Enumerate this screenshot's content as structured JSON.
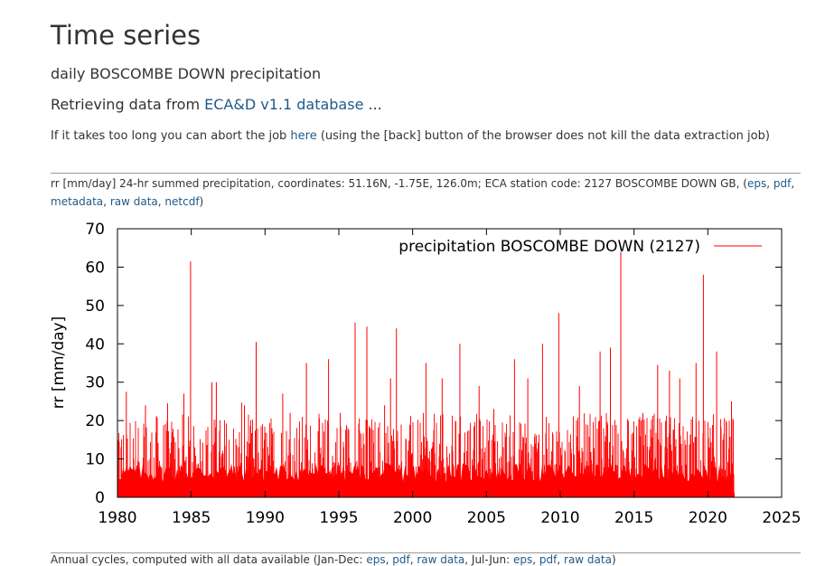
{
  "header": {
    "title": "Time series",
    "subtitle": "daily BOSCOMBE DOWN precipitation",
    "retrieving_prefix": "Retrieving data from ",
    "retrieving_link": "ECA&D v1.1 database",
    "retrieving_suffix": " ...",
    "abort_prefix": "If it takes too long you can abort the job ",
    "abort_link": "here",
    "abort_suffix": " (using the [back] button of the browser does not kill the data extraction job)"
  },
  "caption": {
    "text": "rr [mm/day] 24-hr summed precipitation, coordinates: 51.16N, -1.75E, 126.0m; ECA station code: 2127 BOSCOMBE DOWN GB, (",
    "link_eps": "eps",
    "link_pdf": "pdf",
    "link_metadata": "metadata",
    "link_rawdata": "raw data",
    "link_netcdf": "netcdf",
    "sep": ", ",
    "close": ")"
  },
  "bottom": {
    "text": "Annual cycles, computed with all data available (Jan-Dec: ",
    "link_eps": "eps",
    "link_pdf": "pdf",
    "link_rawdata": "raw data",
    "mid": ", Jul-Jun: ",
    "link_eps2": "eps",
    "link_pdf2": "pdf",
    "link_rawdata2": "raw data",
    "close": ")"
  },
  "chart_data": {
    "type": "bar",
    "title": "",
    "xlabel": "",
    "ylabel": "rr [mm/day]",
    "xlim": [
      1980,
      2025
    ],
    "ylim": [
      0,
      70
    ],
    "xticks": [
      "1980",
      "1985",
      "1990",
      "1995",
      "2000",
      "2005",
      "2010",
      "2015",
      "2020",
      "2025"
    ],
    "yticks": [
      "0",
      "10",
      "20",
      "30",
      "40",
      "50",
      "60",
      "70"
    ],
    "legend": {
      "label": "precipitation BOSCOMBE DOWN (2127)",
      "position": "top-right"
    },
    "series_color": "#ff0000",
    "data_range": [
      1980,
      2021.8
    ],
    "peaks": [
      {
        "x": 1980.6,
        "y": 27.5
      },
      {
        "x": 1981.9,
        "y": 24
      },
      {
        "x": 1983.4,
        "y": 24.5
      },
      {
        "x": 1984.5,
        "y": 27
      },
      {
        "x": 1984.95,
        "y": 61.5
      },
      {
        "x": 1986.4,
        "y": 30
      },
      {
        "x": 1986.7,
        "y": 30
      },
      {
        "x": 1988.6,
        "y": 24
      },
      {
        "x": 1989.4,
        "y": 40.5
      },
      {
        "x": 1991.2,
        "y": 27
      },
      {
        "x": 1991.7,
        "y": 22
      },
      {
        "x": 1992.8,
        "y": 35
      },
      {
        "x": 1994.3,
        "y": 36
      },
      {
        "x": 1995.1,
        "y": 22
      },
      {
        "x": 1996.1,
        "y": 45.5
      },
      {
        "x": 1996.9,
        "y": 44.5
      },
      {
        "x": 1998.1,
        "y": 24
      },
      {
        "x": 1998.5,
        "y": 31
      },
      {
        "x": 1998.9,
        "y": 44
      },
      {
        "x": 2000.9,
        "y": 35
      },
      {
        "x": 2002.0,
        "y": 31
      },
      {
        "x": 2003.2,
        "y": 40
      },
      {
        "x": 2004.5,
        "y": 29
      },
      {
        "x": 2005.5,
        "y": 23
      },
      {
        "x": 2006.9,
        "y": 36
      },
      {
        "x": 2007.8,
        "y": 31
      },
      {
        "x": 2008.8,
        "y": 40
      },
      {
        "x": 2009.9,
        "y": 48
      },
      {
        "x": 2011.3,
        "y": 29
      },
      {
        "x": 2012.7,
        "y": 38
      },
      {
        "x": 2013.4,
        "y": 39
      },
      {
        "x": 2014.1,
        "y": 64
      },
      {
        "x": 2015.6,
        "y": 22
      },
      {
        "x": 2016.6,
        "y": 34.5
      },
      {
        "x": 2017.4,
        "y": 33
      },
      {
        "x": 2018.1,
        "y": 31
      },
      {
        "x": 2019.2,
        "y": 35
      },
      {
        "x": 2019.7,
        "y": 58
      },
      {
        "x": 2020.6,
        "y": 38
      },
      {
        "x": 2021.6,
        "y": 25
      }
    ]
  }
}
